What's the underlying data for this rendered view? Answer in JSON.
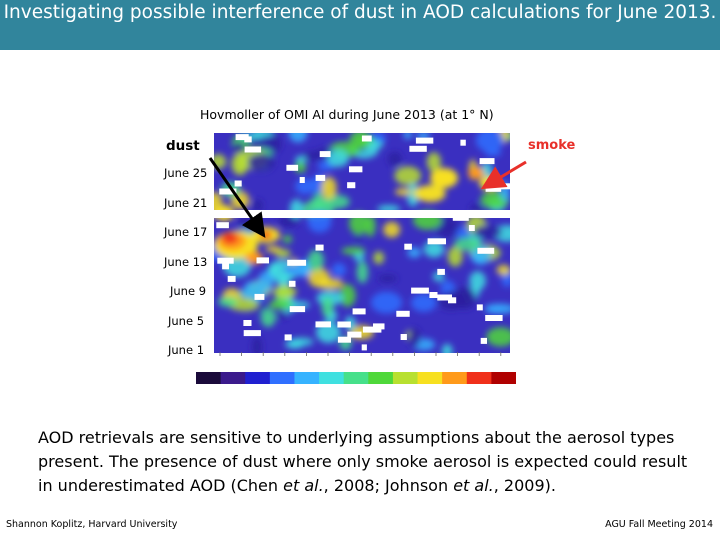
{
  "slide": {
    "title": "Investigating possible interference of dust in AOD calculations for June 2013.",
    "figure_title": "Hovmoller of OMI AI during June 2013 (at 1° N)",
    "dust_label": "dust",
    "smoke_label": "smoke",
    "y_labels": [
      "June 25",
      "June 21",
      "June 17",
      "June 13",
      "June 9",
      "June 5",
      "June 1"
    ],
    "body_parts": [
      "AOD retrievals are sensitive to underlying assumptions about the aerosol types present. The presence of dust where only smoke aerosol is expected could result in underestimated AOD (Chen ",
      "et al.",
      ", 2008; Johnson ",
      "et al.",
      ", 2009)."
    ],
    "footer_left": "Shannon Koplitz, Harvard University",
    "footer_right": "AGU Fall Meeting 2014"
  },
  "colors": {
    "title_bar": "#31859c",
    "smoke_label": "#e8302a",
    "dust_arrow": "#000000",
    "smoke_arrow": "#e8302a"
  },
  "colorbar": {
    "stops": [
      "#1a0a3a",
      "#3b1a8c",
      "#2020d0",
      "#2f6fff",
      "#36b3ff",
      "#3fe0e0",
      "#46e08a",
      "#4fd83a",
      "#b8e030",
      "#f7e020",
      "#ff9a1a",
      "#f0301a",
      "#b00000"
    ]
  }
}
